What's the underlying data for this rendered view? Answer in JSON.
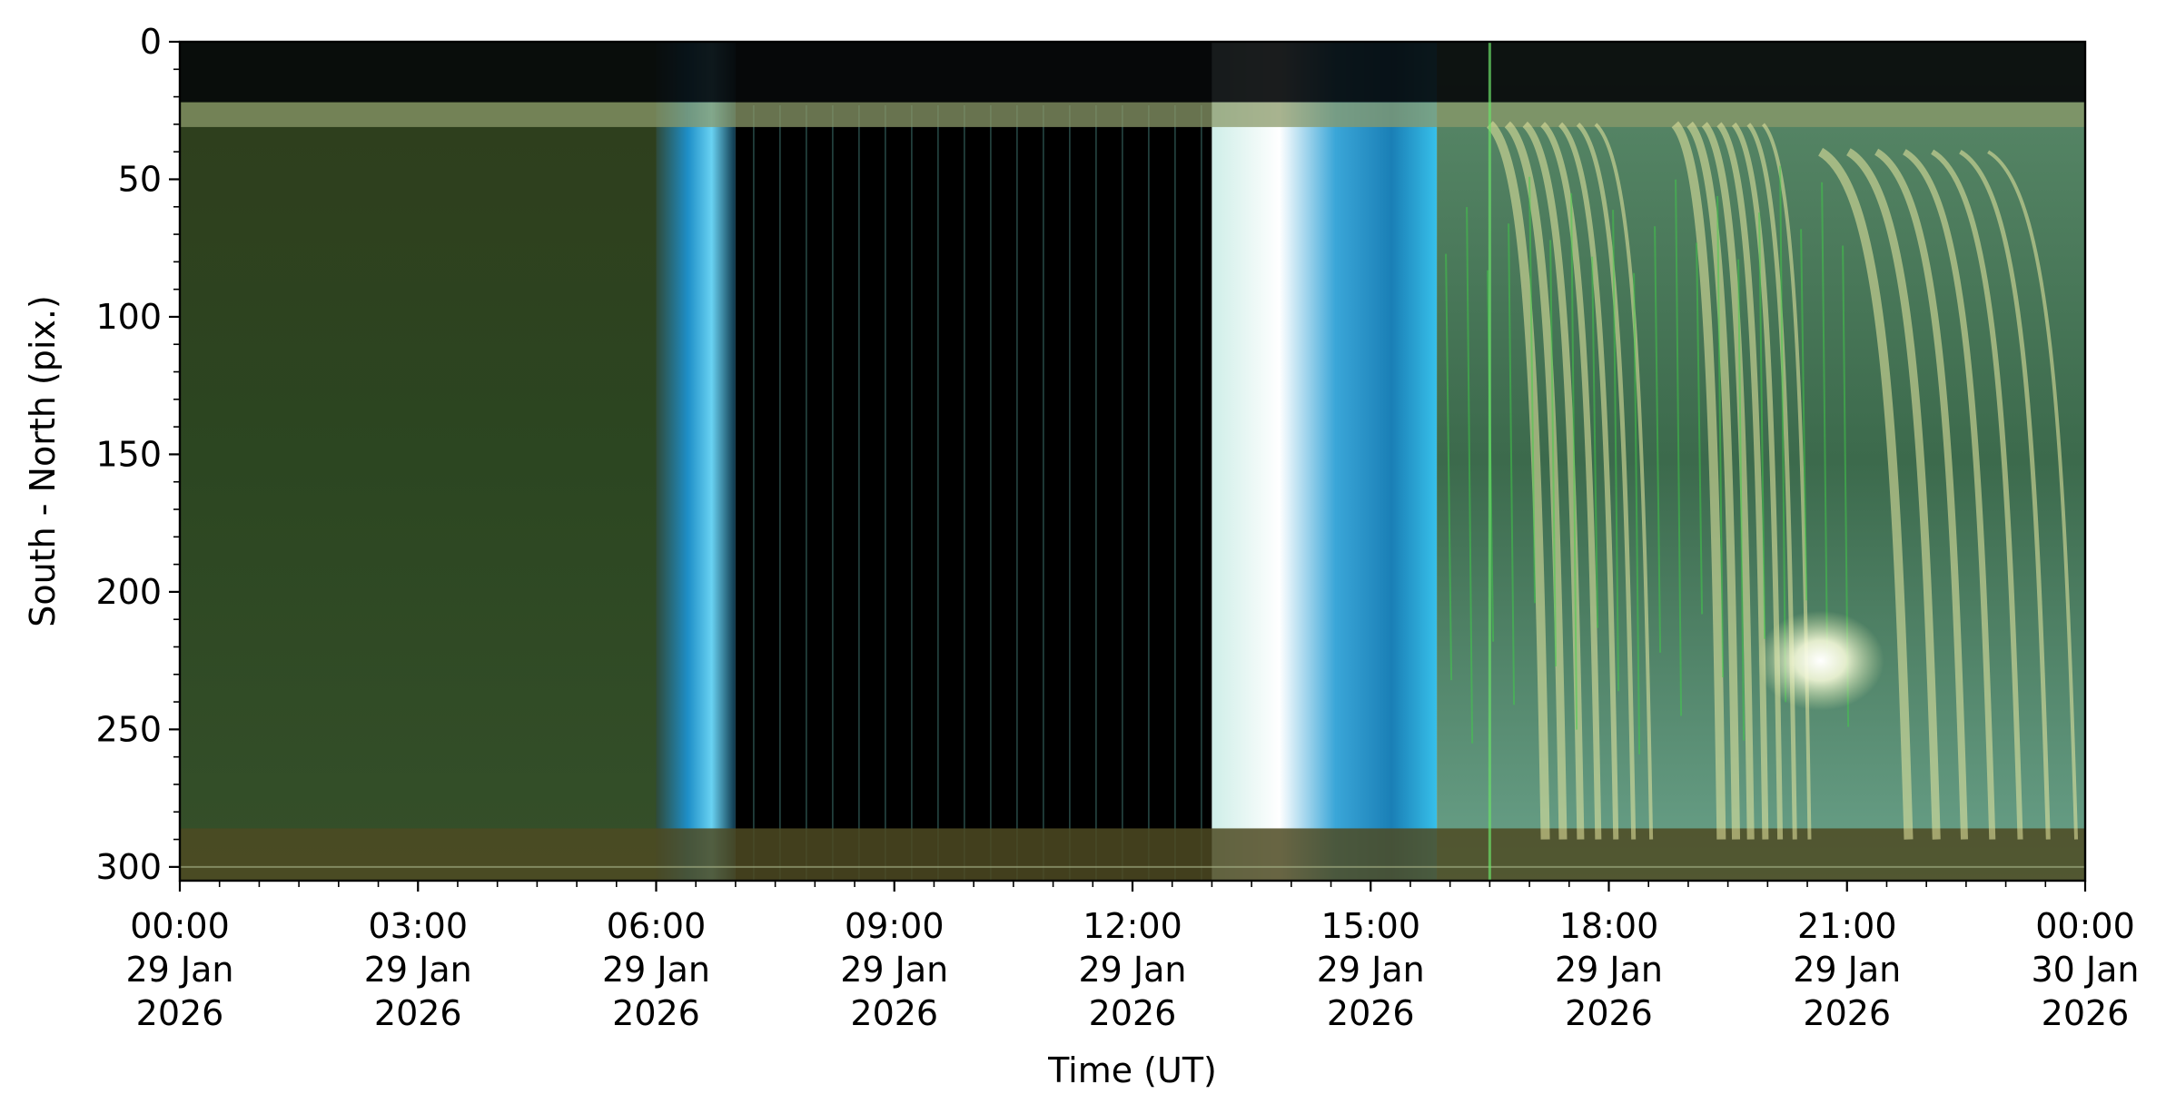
{
  "chart_data": {
    "type": "heatmap",
    "title": "",
    "xlabel": "Time (UT)",
    "ylabel": "South - North (pix.)",
    "x_range": [
      "2026-01-29T00:00",
      "2026-01-30T00:00"
    ],
    "ylim": [
      305,
      0
    ],
    "y_inverted": true,
    "grid": false,
    "y_ticks": [
      0,
      50,
      100,
      150,
      200,
      250,
      300
    ],
    "x_ticks": [
      {
        "time": "2026-01-29T00:00",
        "label": [
          "00:00",
          "29 Jan",
          "2026"
        ]
      },
      {
        "time": "2026-01-29T03:00",
        "label": [
          "03:00",
          "29 Jan",
          "2026"
        ]
      },
      {
        "time": "2026-01-29T06:00",
        "label": [
          "06:00",
          "29 Jan",
          "2026"
        ]
      },
      {
        "time": "2026-01-29T09:00",
        "label": [
          "09:00",
          "29 Jan",
          "2026"
        ]
      },
      {
        "time": "2026-01-29T12:00",
        "label": [
          "12:00",
          "29 Jan",
          "2026"
        ]
      },
      {
        "time": "2026-01-29T15:00",
        "label": [
          "15:00",
          "29 Jan",
          "2026"
        ]
      },
      {
        "time": "2026-01-29T18:00",
        "label": [
          "18:00",
          "29 Jan",
          "2026"
        ]
      },
      {
        "time": "2026-01-29T21:00",
        "label": [
          "21:00",
          "29 Jan",
          "2026"
        ]
      },
      {
        "time": "2026-01-30T00:00",
        "label": [
          "00:00",
          "30 Jan",
          "2026"
        ]
      }
    ],
    "x_minor_step_minutes": 30,
    "y_minor_step": 10,
    "segments": [
      {
        "start": "2026-01-29T00:00",
        "end": "2026-01-29T06:00",
        "phase": "night-green",
        "color": "#324a22"
      },
      {
        "start": "2026-01-29T06:00",
        "end": "2026-01-29T07:00",
        "phase": "twilight-blue",
        "color": "#1f8fc4"
      },
      {
        "start": "2026-01-29T07:00",
        "end": "2026-01-29T13:00",
        "phase": "daylight-blank",
        "color": "#000000"
      },
      {
        "start": "2026-01-29T13:00",
        "end": "2026-01-29T15:50",
        "phase": "twilight-blue",
        "color": "#28a6d8"
      },
      {
        "start": "2026-01-29T15:50",
        "end": "2026-01-30T00:00",
        "phase": "aurora",
        "color": "#4e7a5e"
      }
    ],
    "aurora_streaks": [
      {
        "start": "2026-01-29T16:30",
        "end": "2026-01-29T18:30",
        "y_top": 30,
        "y_bottom": 290,
        "color": "#e8e8a0"
      },
      {
        "start": "2026-01-29T18:50",
        "end": "2026-01-29T20:30",
        "y_top": 30,
        "y_bottom": 290,
        "color": "#e8e8a0"
      },
      {
        "start": "2026-01-29T20:40",
        "end": "2026-01-29T23:50",
        "y_top": 40,
        "y_bottom": 290,
        "color": "#e8e8a0"
      }
    ],
    "bright_spot": {
      "time": "2026-01-29T20:40",
      "y": 225,
      "color": "#ffffff"
    }
  }
}
